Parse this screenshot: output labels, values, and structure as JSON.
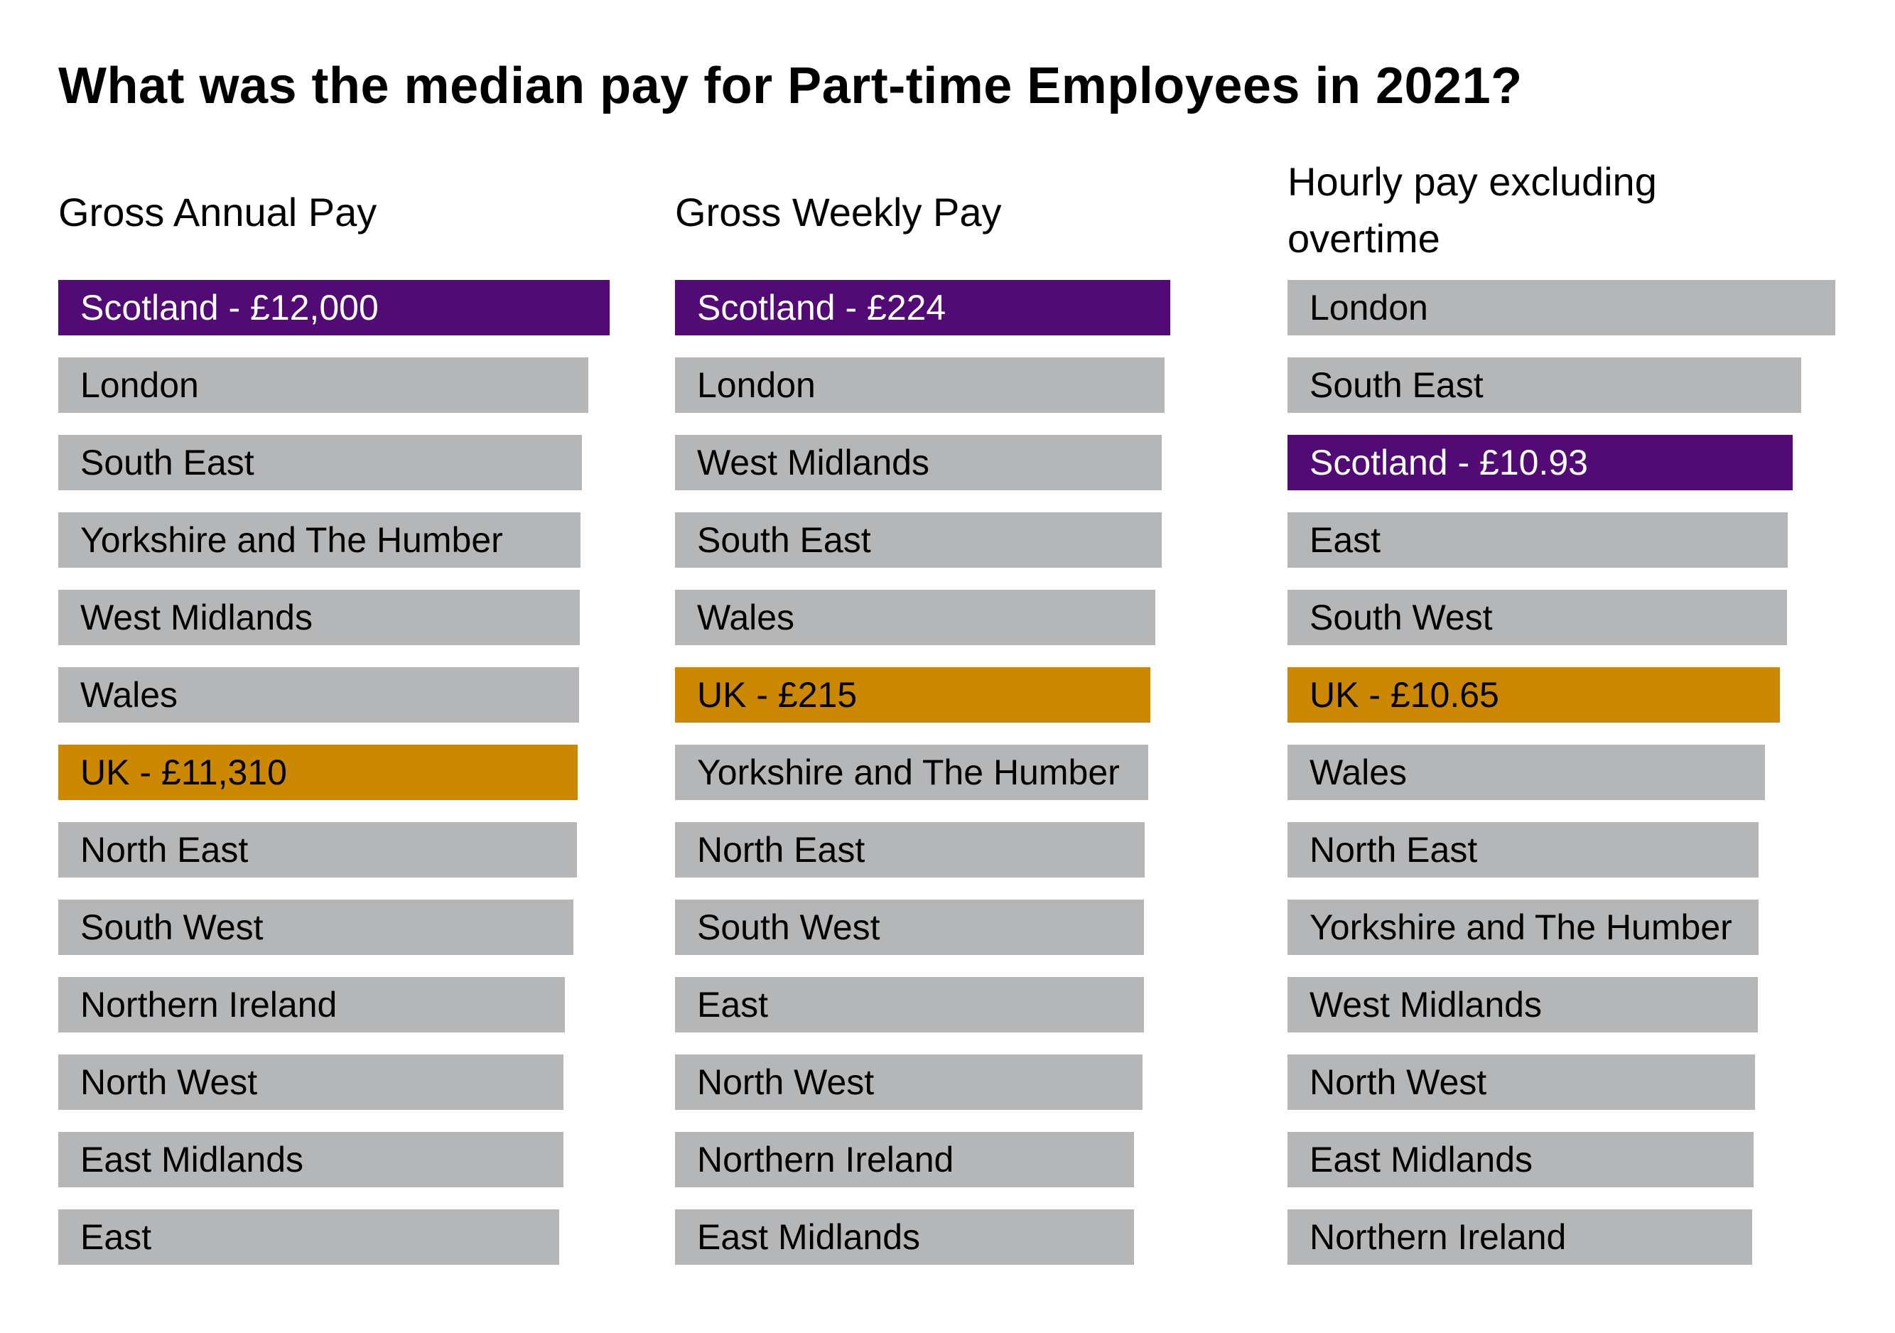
{
  "title": "What was the median pay for Part-time Employees in 2021?",
  "colors": {
    "scotland": "#520a74",
    "uk": "#cc8800",
    "other": "#b5b6b8",
    "background": "#ffffff"
  },
  "chart_data": [
    {
      "type": "bar",
      "orientation": "horizontal",
      "title": "Gross Annual Pay",
      "unit": "£",
      "categories": [
        "Scotland - £12,000",
        "London",
        "South East",
        "Yorkshire and The Humber",
        "West Midlands",
        "Wales",
        "UK - £11,310",
        "North East",
        "South West",
        "Northern Ireland",
        "North West",
        "East Midlands",
        "East"
      ],
      "highlight": {
        "Scotland - £12,000": "scotland",
        "UK - £11,310": "uk"
      },
      "values": [
        12000,
        11530,
        11400,
        11370,
        11345,
        11330,
        11310,
        11290,
        11210,
        11030,
        11000,
        10990,
        10900
      ]
    },
    {
      "type": "bar",
      "orientation": "horizontal",
      "title": "Gross Weekly Pay",
      "unit": "£",
      "categories": [
        "Scotland - £224",
        "London",
        "West Midlands",
        "South East",
        "Wales",
        "UK - £215",
        "Yorkshire and The Humber",
        "North East",
        "South West",
        "East",
        "North West",
        "Northern Ireland",
        "East Midlands"
      ],
      "highlight": {
        "Scotland - £224": "scotland",
        "UK - £215": "uk"
      },
      "values": [
        224,
        221.3,
        220.2,
        220,
        217.4,
        215,
        214.1,
        212.5,
        212,
        212,
        211.4,
        207.5,
        207.5
      ]
    },
    {
      "type": "bar",
      "orientation": "horizontal",
      "title": "Hourly pay excluding overtime",
      "title_lines": [
        "Hourly pay excluding",
        "overtime"
      ],
      "unit": "£",
      "categories": [
        "London",
        "South East",
        "Scotland - £10.93",
        "East",
        "South West",
        "UK - £10.65",
        "Wales",
        "North East",
        "Yorkshire and The Humber",
        "West Midlands",
        "North West",
        "East Midlands",
        "Northern Ireland"
      ],
      "highlight": {
        "Scotland - £10.93": "scotland",
        "UK - £10.65": "uk"
      },
      "values": [
        11.85,
        11.11,
        10.93,
        10.83,
        10.8,
        10.65,
        10.33,
        10.19,
        10.19,
        10.17,
        10.12,
        10.09,
        10.06
      ]
    }
  ]
}
